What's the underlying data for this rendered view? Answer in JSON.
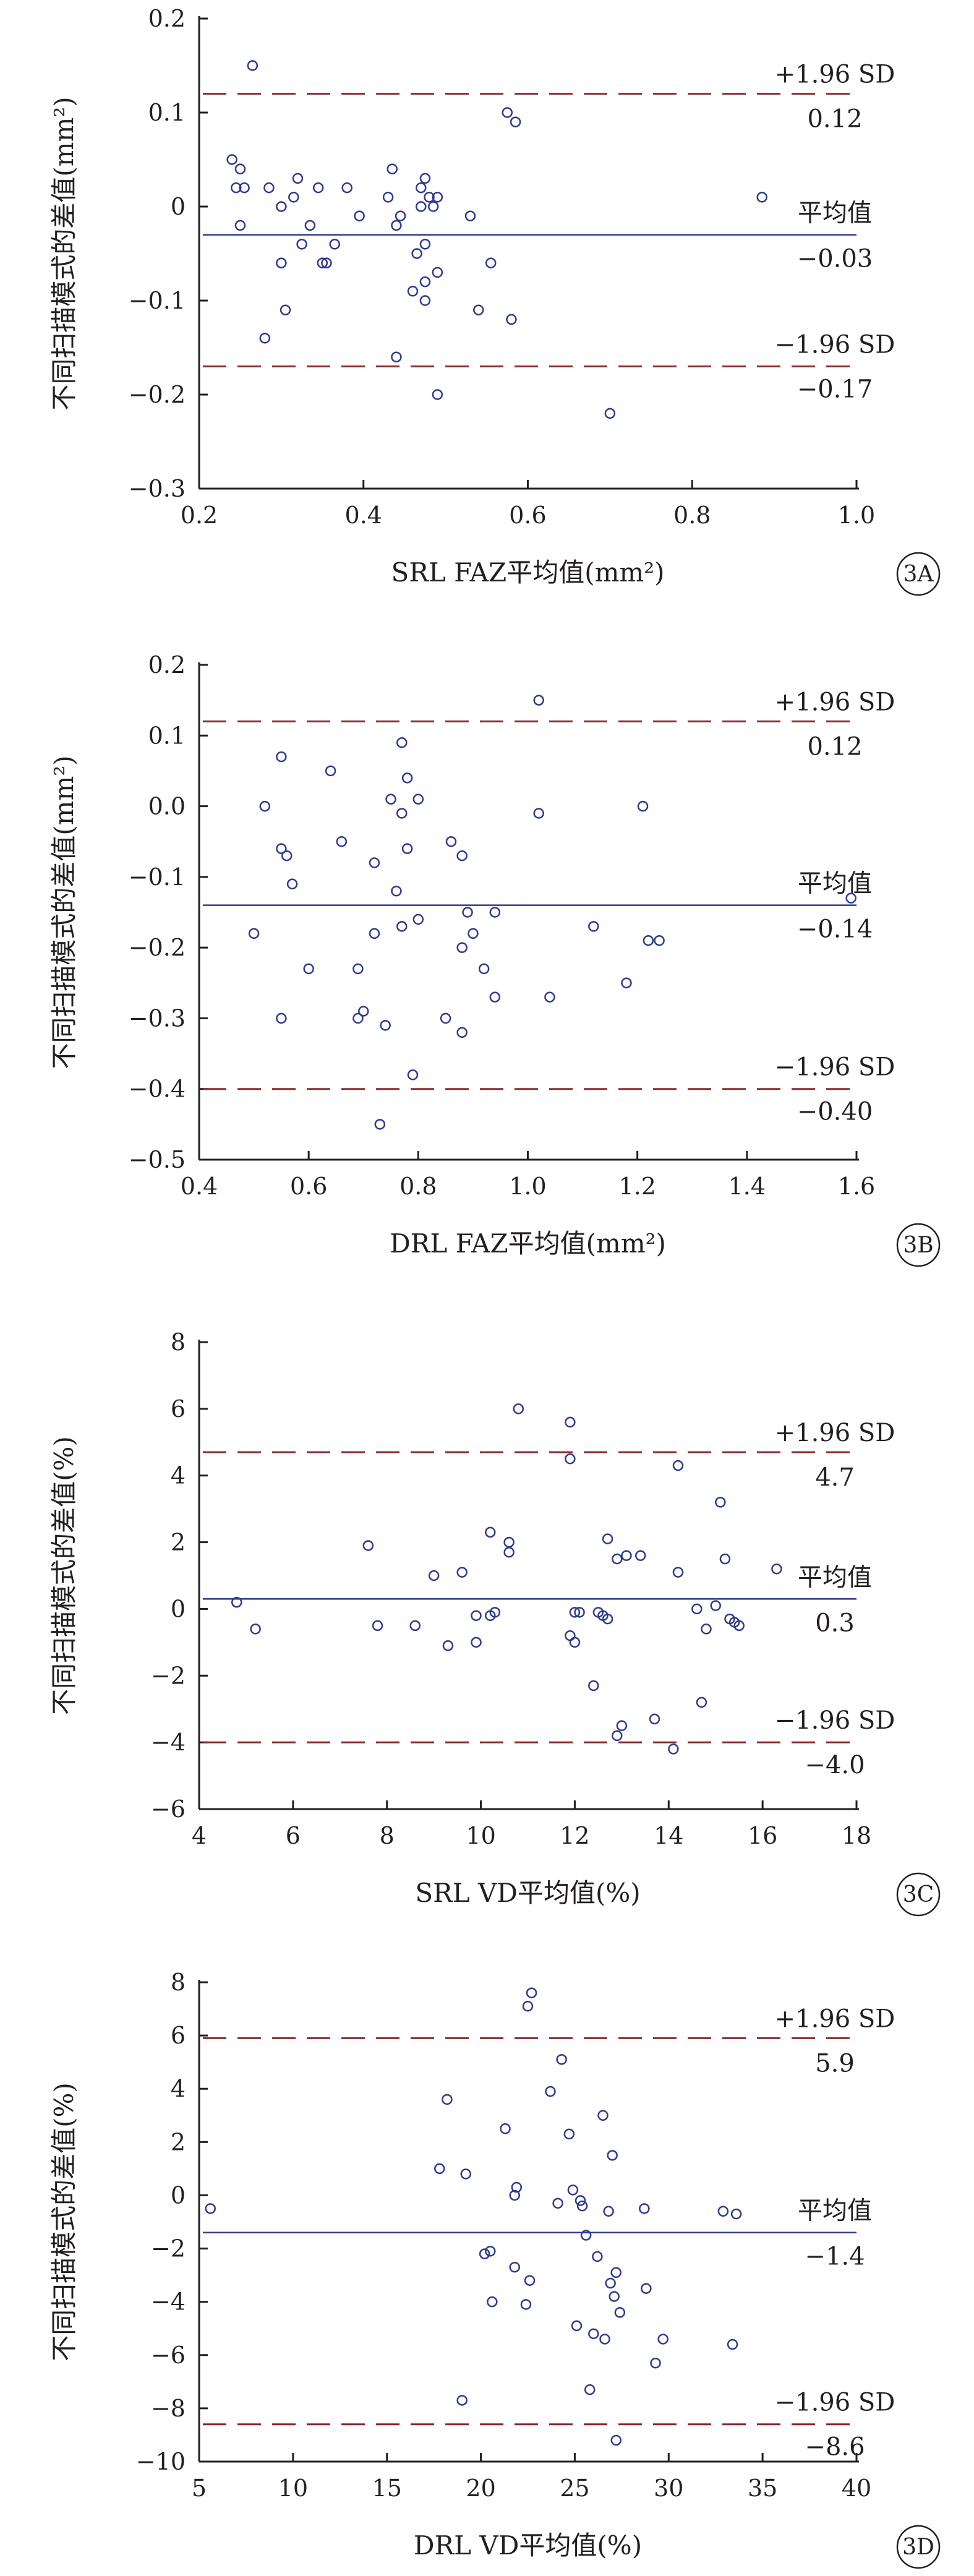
{
  "colors": {
    "axis": "#231f20",
    "limit": "#8b2a2f",
    "mean": "#2e3a8c",
    "point": "#2e3a8c"
  },
  "labels": {
    "upper": "+1.96 SD",
    "mean": "平均值",
    "lower": "−1.96 SD"
  },
  "chart_data": [
    {
      "type": "scatter",
      "panel": "3A",
      "xlabel": "SRL FAZ平均值(mm²)",
      "ylabel": "不同扫描模式的差值(mm²)",
      "xlim": [
        0.2,
        1.0
      ],
      "ylim": [
        -0.3,
        0.2
      ],
      "xticks": [
        0.2,
        0.4,
        0.6,
        0.8,
        1.0
      ],
      "xtick_labels": [
        "0.2",
        "0.4",
        "0.6",
        "0.8",
        "1.0"
      ],
      "yticks": [
        0.2,
        0.1,
        0,
        -0.1,
        -0.2,
        -0.3
      ],
      "ytick_labels": [
        "0.2",
        "0.1",
        "0",
        "−0.1",
        "−0.2",
        "−0.3"
      ],
      "upper_loa": 0.12,
      "mean": -0.03,
      "lower_loa": -0.17,
      "upper_loa_label": "0.12",
      "mean_label": "−0.03",
      "lower_loa_label": "−0.17",
      "points": [
        [
          0.265,
          0.15
        ],
        [
          0.575,
          0.1
        ],
        [
          0.585,
          0.09
        ],
        [
          0.885,
          0.01
        ],
        [
          0.24,
          0.05
        ],
        [
          0.25,
          0.04
        ],
        [
          0.245,
          0.02
        ],
        [
          0.255,
          0.02
        ],
        [
          0.25,
          -0.02
        ],
        [
          0.285,
          0.02
        ],
        [
          0.3,
          0.0
        ],
        [
          0.315,
          0.01
        ],
        [
          0.32,
          0.03
        ],
        [
          0.345,
          0.02
        ],
        [
          0.325,
          -0.04
        ],
        [
          0.335,
          -0.02
        ],
        [
          0.35,
          -0.06
        ],
        [
          0.355,
          -0.06
        ],
        [
          0.365,
          -0.04
        ],
        [
          0.3,
          -0.06
        ],
        [
          0.305,
          -0.11
        ],
        [
          0.28,
          -0.14
        ],
        [
          0.38,
          0.02
        ],
        [
          0.395,
          -0.01
        ],
        [
          0.43,
          0.01
        ],
        [
          0.435,
          0.04
        ],
        [
          0.44,
          -0.02
        ],
        [
          0.445,
          -0.01
        ],
        [
          0.44,
          -0.16
        ],
        [
          0.46,
          -0.09
        ],
        [
          0.465,
          -0.05
        ],
        [
          0.47,
          0.02
        ],
        [
          0.475,
          0.03
        ],
        [
          0.47,
          0.0
        ],
        [
          0.48,
          0.01
        ],
        [
          0.485,
          0.0
        ],
        [
          0.49,
          0.01
        ],
        [
          0.475,
          -0.04
        ],
        [
          0.475,
          -0.08
        ],
        [
          0.475,
          -0.1
        ],
        [
          0.49,
          -0.07
        ],
        [
          0.49,
          -0.2
        ],
        [
          0.53,
          -0.01
        ],
        [
          0.54,
          -0.11
        ],
        [
          0.555,
          -0.06
        ],
        [
          0.58,
          -0.12
        ],
        [
          0.7,
          -0.22
        ]
      ]
    },
    {
      "type": "scatter",
      "panel": "3B",
      "xlabel": "DRL FAZ平均值(mm²)",
      "ylabel": "不同扫描模式的差值(mm²)",
      "xlim": [
        0.4,
        1.6
      ],
      "ylim": [
        -0.5,
        0.2
      ],
      "xticks": [
        0.4,
        0.6,
        0.8,
        1.0,
        1.2,
        1.4,
        1.6
      ],
      "xtick_labels": [
        "0.4",
        "0.6",
        "0.8",
        "1.0",
        "1.2",
        "1.4",
        "1.6"
      ],
      "yticks": [
        0.2,
        0.1,
        0.0,
        -0.1,
        -0.2,
        -0.3,
        -0.4,
        -0.5
      ],
      "ytick_labels": [
        "0.2",
        "0.1",
        "0.0",
        "−0.1",
        "−0.2",
        "−0.3",
        "−0.4",
        "−0.5"
      ],
      "upper_loa": 0.12,
      "mean": -0.14,
      "lower_loa": -0.4,
      "upper_loa_label": "0.12",
      "mean_label": "−0.14",
      "lower_loa_label": "−0.40",
      "points": [
        [
          1.02,
          0.15
        ],
        [
          0.77,
          0.09
        ],
        [
          0.55,
          0.07
        ],
        [
          0.64,
          0.05
        ],
        [
          0.78,
          0.04
        ],
        [
          0.75,
          0.01
        ],
        [
          0.8,
          0.01
        ],
        [
          0.52,
          0.0
        ],
        [
          0.77,
          -0.01
        ],
        [
          1.02,
          -0.01
        ],
        [
          1.21,
          0.0
        ],
        [
          0.55,
          -0.06
        ],
        [
          0.56,
          -0.07
        ],
        [
          0.66,
          -0.05
        ],
        [
          0.78,
          -0.06
        ],
        [
          0.86,
          -0.05
        ],
        [
          0.88,
          -0.07
        ],
        [
          0.57,
          -0.11
        ],
        [
          0.72,
          -0.08
        ],
        [
          0.76,
          -0.12
        ],
        [
          0.77,
          -0.17
        ],
        [
          0.8,
          -0.16
        ],
        [
          0.89,
          -0.15
        ],
        [
          0.5,
          -0.18
        ],
        [
          0.72,
          -0.18
        ],
        [
          0.9,
          -0.18
        ],
        [
          0.94,
          -0.15
        ],
        [
          1.12,
          -0.17
        ],
        [
          1.22,
          -0.19
        ],
        [
          1.24,
          -0.19
        ],
        [
          0.6,
          -0.23
        ],
        [
          0.69,
          -0.23
        ],
        [
          0.88,
          -0.2
        ],
        [
          0.92,
          -0.23
        ],
        [
          1.18,
          -0.25
        ],
        [
          1.59,
          -0.13
        ],
        [
          0.55,
          -0.3
        ],
        [
          0.69,
          -0.3
        ],
        [
          0.7,
          -0.29
        ],
        [
          0.74,
          -0.31
        ],
        [
          0.85,
          -0.3
        ],
        [
          0.88,
          -0.32
        ],
        [
          0.94,
          -0.27
        ],
        [
          1.04,
          -0.27
        ],
        [
          0.79,
          -0.38
        ],
        [
          0.73,
          -0.45
        ]
      ]
    },
    {
      "type": "scatter",
      "panel": "3C",
      "xlabel": "SRL VD平均值(%)",
      "ylabel": "不同扫描模式的差值(%)",
      "xlim": [
        4,
        18
      ],
      "ylim": [
        -6,
        8
      ],
      "xticks": [
        4,
        6,
        8,
        10,
        12,
        14,
        16,
        18
      ],
      "xtick_labels": [
        "4",
        "6",
        "8",
        "10",
        "12",
        "14",
        "16",
        "18"
      ],
      "yticks": [
        8,
        6,
        4,
        2,
        0,
        -2,
        -4,
        -6
      ],
      "ytick_labels": [
        "8",
        "6",
        "4",
        "2",
        "0",
        "−2",
        "−4",
        "−6"
      ],
      "upper_loa": 4.7,
      "mean": 0.3,
      "lower_loa": -4.0,
      "upper_loa_label": "4.7",
      "mean_label": "0.3",
      "lower_loa_label": "−4.0",
      "points": [
        [
          10.8,
          6.0
        ],
        [
          11.9,
          5.6
        ],
        [
          11.9,
          4.5
        ],
        [
          14.2,
          4.3
        ],
        [
          15.1,
          3.2
        ],
        [
          7.6,
          1.9
        ],
        [
          10.2,
          2.3
        ],
        [
          10.6,
          2.0
        ],
        [
          10.6,
          1.7
        ],
        [
          12.7,
          2.1
        ],
        [
          12.9,
          1.5
        ],
        [
          13.1,
          1.6
        ],
        [
          13.4,
          1.6
        ],
        [
          15.2,
          1.5
        ],
        [
          16.3,
          1.2
        ],
        [
          14.2,
          1.1
        ],
        [
          9.0,
          1.0
        ],
        [
          9.6,
          1.1
        ],
        [
          4.8,
          0.2
        ],
        [
          5.2,
          -0.6
        ],
        [
          7.8,
          -0.5
        ],
        [
          8.6,
          -0.5
        ],
        [
          9.3,
          -1.1
        ],
        [
          9.9,
          -1.0
        ],
        [
          9.9,
          -0.2
        ],
        [
          10.2,
          -0.2
        ],
        [
          10.3,
          -0.1
        ],
        [
          12.0,
          -0.1
        ],
        [
          12.1,
          -0.1
        ],
        [
          12.5,
          -0.1
        ],
        [
          12.6,
          -0.2
        ],
        [
          12.7,
          -0.3
        ],
        [
          11.9,
          -0.8
        ],
        [
          12.0,
          -1.0
        ],
        [
          14.6,
          0.0
        ],
        [
          14.8,
          -0.6
        ],
        [
          15.0,
          0.1
        ],
        [
          15.3,
          -0.3
        ],
        [
          15.4,
          -0.4
        ],
        [
          15.5,
          -0.5
        ],
        [
          12.4,
          -2.3
        ],
        [
          13.0,
          -3.5
        ],
        [
          12.9,
          -3.8
        ],
        [
          13.7,
          -3.3
        ],
        [
          14.7,
          -2.8
        ],
        [
          14.1,
          -4.2
        ]
      ]
    },
    {
      "type": "scatter",
      "panel": "3D",
      "xlabel": "DRL VD平均值(%)",
      "ylabel": "不同扫描模式的差值(%)",
      "xlim": [
        5,
        40
      ],
      "ylim": [
        -10,
        8
      ],
      "xticks": [
        5,
        10,
        15,
        20,
        25,
        30,
        35,
        40
      ],
      "xtick_labels": [
        "5",
        "10",
        "15",
        "20",
        "25",
        "30",
        "35",
        "40"
      ],
      "yticks": [
        8,
        6,
        4,
        2,
        0,
        -2,
        -4,
        -6,
        -8,
        -10
      ],
      "ytick_labels": [
        "8",
        "6",
        "4",
        "2",
        "0",
        "−2",
        "−4",
        "−6",
        "−8",
        "−10"
      ],
      "upper_loa": 5.9,
      "mean": -1.4,
      "lower_loa": -8.6,
      "upper_loa_label": "5.9",
      "mean_label": "−1.4",
      "lower_loa_label": "−8.6",
      "points": [
        [
          22.7,
          7.6
        ],
        [
          22.5,
          7.1
        ],
        [
          24.3,
          5.1
        ],
        [
          23.7,
          3.9
        ],
        [
          18.2,
          3.6
        ],
        [
          26.5,
          3.0
        ],
        [
          24.7,
          2.3
        ],
        [
          21.3,
          2.5
        ],
        [
          27.0,
          1.5
        ],
        [
          17.8,
          1.0
        ],
        [
          19.2,
          0.8
        ],
        [
          21.9,
          0.3
        ],
        [
          21.8,
          0.0
        ],
        [
          24.9,
          0.2
        ],
        [
          25.3,
          -0.2
        ],
        [
          25.4,
          -0.4
        ],
        [
          24.1,
          -0.3
        ],
        [
          26.8,
          -0.6
        ],
        [
          28.7,
          -0.5
        ],
        [
          32.9,
          -0.6
        ],
        [
          33.6,
          -0.7
        ],
        [
          5.6,
          -0.5
        ],
        [
          25.6,
          -1.5
        ],
        [
          20.2,
          -2.2
        ],
        [
          20.5,
          -2.1
        ],
        [
          21.8,
          -2.7
        ],
        [
          26.2,
          -2.3
        ],
        [
          27.2,
          -2.9
        ],
        [
          20.6,
          -4.0
        ],
        [
          22.4,
          -4.1
        ],
        [
          22.6,
          -3.2
        ],
        [
          26.9,
          -3.3
        ],
        [
          27.1,
          -3.8
        ],
        [
          27.4,
          -4.4
        ],
        [
          28.8,
          -3.5
        ],
        [
          25.1,
          -4.9
        ],
        [
          26.0,
          -5.2
        ],
        [
          26.6,
          -5.4
        ],
        [
          29.7,
          -5.4
        ],
        [
          33.4,
          -5.6
        ],
        [
          29.3,
          -6.3
        ],
        [
          25.8,
          -7.3
        ],
        [
          19.0,
          -7.7
        ],
        [
          27.2,
          -9.2
        ]
      ]
    }
  ]
}
